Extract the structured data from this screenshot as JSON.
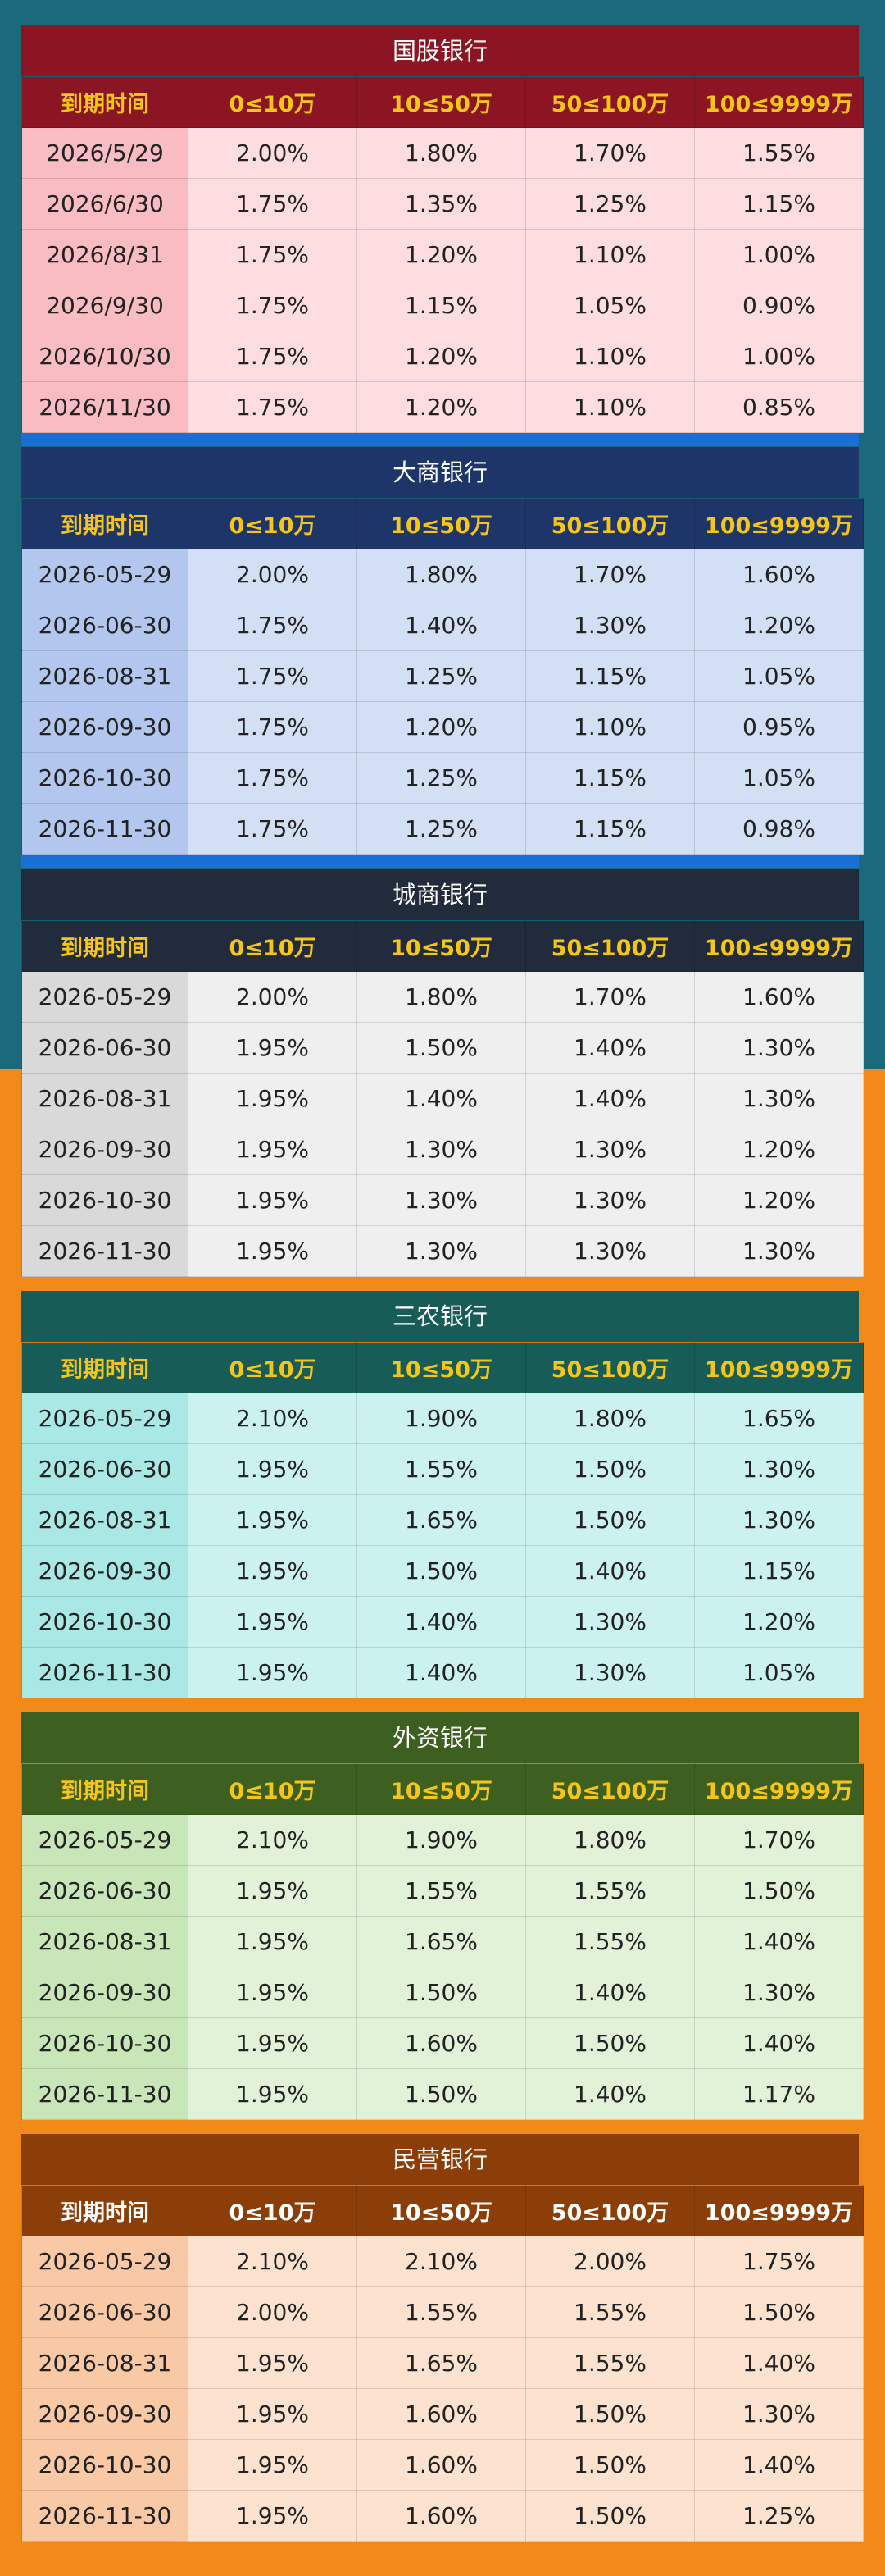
{
  "headers": [
    "到期时间",
    "0≤10万",
    "10≤50万",
    "50≤100万",
    "100≤9999万"
  ],
  "banks": [
    {
      "name": "国股银行",
      "rows": [
        [
          "2026/5/29",
          "2.00%",
          "1.80%",
          "1.70%",
          "1.55%"
        ],
        [
          "2026/6/30",
          "1.75%",
          "1.35%",
          "1.25%",
          "1.15%"
        ],
        [
          "2026/8/31",
          "1.75%",
          "1.20%",
          "1.10%",
          "1.00%"
        ],
        [
          "2026/9/30",
          "1.75%",
          "1.15%",
          "1.05%",
          "0.90%"
        ],
        [
          "2026/10/30",
          "1.75%",
          "1.20%",
          "1.10%",
          "1.00%"
        ],
        [
          "2026/11/30",
          "1.75%",
          "1.20%",
          "1.10%",
          "0.85%"
        ]
      ]
    },
    {
      "name": "大商银行",
      "rows": [
        [
          "2026-05-29",
          "2.00%",
          "1.80%",
          "1.70%",
          "1.60%"
        ],
        [
          "2026-06-30",
          "1.75%",
          "1.40%",
          "1.30%",
          "1.20%"
        ],
        [
          "2026-08-31",
          "1.75%",
          "1.25%",
          "1.15%",
          "1.05%"
        ],
        [
          "2026-09-30",
          "1.75%",
          "1.20%",
          "1.10%",
          "0.95%"
        ],
        [
          "2026-10-30",
          "1.75%",
          "1.25%",
          "1.15%",
          "1.05%"
        ],
        [
          "2026-11-30",
          "1.75%",
          "1.25%",
          "1.15%",
          "0.98%"
        ]
      ]
    },
    {
      "name": "城商银行",
      "rows": [
        [
          "2026-05-29",
          "2.00%",
          "1.80%",
          "1.70%",
          "1.60%"
        ],
        [
          "2026-06-30",
          "1.95%",
          "1.50%",
          "1.40%",
          "1.30%"
        ],
        [
          "2026-08-31",
          "1.95%",
          "1.40%",
          "1.40%",
          "1.30%"
        ],
        [
          "2026-09-30",
          "1.95%",
          "1.30%",
          "1.30%",
          "1.20%"
        ],
        [
          "2026-10-30",
          "1.95%",
          "1.30%",
          "1.30%",
          "1.20%"
        ],
        [
          "2026-11-30",
          "1.95%",
          "1.30%",
          "1.30%",
          "1.30%"
        ]
      ]
    },
    {
      "name": "三农银行",
      "rows": [
        [
          "2026-05-29",
          "2.10%",
          "1.90%",
          "1.80%",
          "1.65%"
        ],
        [
          "2026-06-30",
          "1.95%",
          "1.55%",
          "1.50%",
          "1.30%"
        ],
        [
          "2026-08-31",
          "1.95%",
          "1.65%",
          "1.50%",
          "1.30%"
        ],
        [
          "2026-09-30",
          "1.95%",
          "1.50%",
          "1.40%",
          "1.15%"
        ],
        [
          "2026-10-30",
          "1.95%",
          "1.40%",
          "1.30%",
          "1.20%"
        ],
        [
          "2026-11-30",
          "1.95%",
          "1.40%",
          "1.30%",
          "1.05%"
        ]
      ]
    },
    {
      "name": "外资银行",
      "rows": [
        [
          "2026-05-29",
          "2.10%",
          "1.90%",
          "1.80%",
          "1.70%"
        ],
        [
          "2026-06-30",
          "1.95%",
          "1.55%",
          "1.55%",
          "1.50%"
        ],
        [
          "2026-08-31",
          "1.95%",
          "1.65%",
          "1.55%",
          "1.40%"
        ],
        [
          "2026-09-30",
          "1.95%",
          "1.50%",
          "1.40%",
          "1.30%"
        ],
        [
          "2026-10-30",
          "1.95%",
          "1.60%",
          "1.50%",
          "1.40%"
        ],
        [
          "2026-11-30",
          "1.95%",
          "1.50%",
          "1.40%",
          "1.17%"
        ]
      ]
    },
    {
      "name": "民营银行",
      "rows": [
        [
          "2026-05-29",
          "2.10%",
          "2.10%",
          "2.00%",
          "1.75%"
        ],
        [
          "2026-06-30",
          "2.00%",
          "1.55%",
          "1.55%",
          "1.50%"
        ],
        [
          "2026-08-31",
          "1.95%",
          "1.65%",
          "1.55%",
          "1.40%"
        ],
        [
          "2026-09-30",
          "1.95%",
          "1.60%",
          "1.50%",
          "1.30%"
        ],
        [
          "2026-10-30",
          "1.95%",
          "1.60%",
          "1.50%",
          "1.40%"
        ],
        [
          "2026-11-30",
          "1.95%",
          "1.60%",
          "1.50%",
          "1.25%"
        ]
      ]
    }
  ]
}
